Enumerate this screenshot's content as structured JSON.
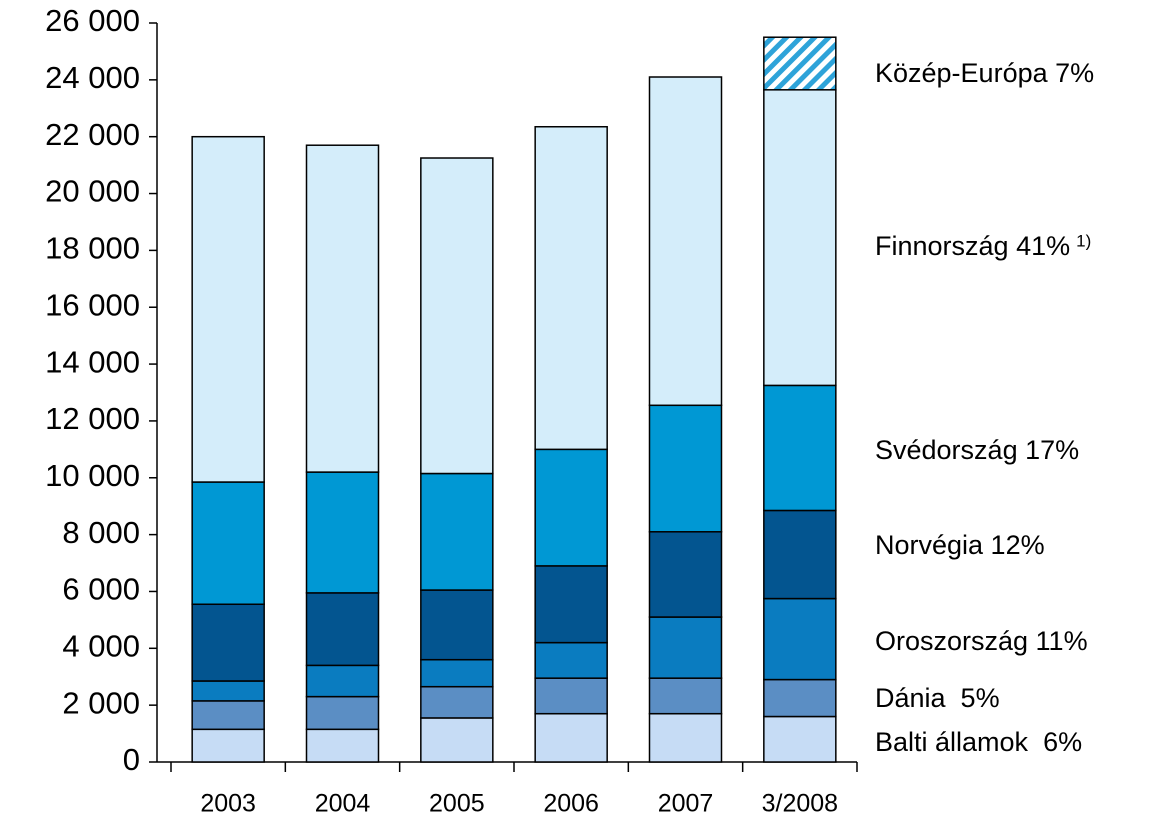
{
  "chart_data": {
    "type": "stacked_bar",
    "categories": [
      "2003",
      "2004",
      "2005",
      "2006",
      "2007",
      "3/2008"
    ],
    "series": [
      {
        "name": "Balti államok  6%",
        "color": "#c6dcf5",
        "values": [
          1150,
          1150,
          1550,
          1700,
          1700,
          1600
        ]
      },
      {
        "name": "Dánia  5%",
        "color": "#5b8ec4",
        "values": [
          1000,
          1150,
          1100,
          1250,
          1250,
          1300
        ]
      },
      {
        "name": "Oroszország 11%",
        "color": "#0a7cc0",
        "values": [
          700,
          1100,
          950,
          1250,
          2150,
          2850
        ]
      },
      {
        "name": "Norvégia 12%",
        "color": "#035590",
        "values": [
          2700,
          2550,
          2450,
          2700,
          3000,
          3100
        ]
      },
      {
        "name": "Svédország 17%",
        "color": "#0098d4",
        "values": [
          4300,
          4250,
          4100,
          4100,
          4450,
          4400
        ]
      },
      {
        "name": "Finnország 41%",
        "color": "#d4edfa",
        "values": [
          12150,
          11500,
          11100,
          11350,
          11550,
          10400
        ]
      },
      {
        "name": "Közép-Európa 7%",
        "color": "#2ea3d9",
        "hatched": true,
        "values": [
          null,
          null,
          null,
          null,
          null,
          1850
        ]
      }
    ],
    "footnote_marker": "1)",
    "ylim": [
      0,
      26000
    ],
    "yticks": [
      0,
      {
        "value": 2000,
        "label": "2 000"
      },
      {
        "value": 4000,
        "label": "4 000"
      },
      {
        "value": 6000,
        "label": "6 000"
      },
      {
        "value": 8000,
        "label": "8 000"
      },
      {
        "value": 10000,
        "label": "10 000"
      },
      {
        "value": 12000,
        "label": "12 000"
      },
      {
        "value": 14000,
        "label": "14 000"
      },
      {
        "value": 16000,
        "label": "16 000"
      },
      {
        "value": 18000,
        "label": "18 000"
      },
      {
        "value": 20000,
        "label": "20 000"
      },
      {
        "value": 22000,
        "label": "22 000"
      },
      {
        "value": 24000,
        "label": "24 000"
      },
      {
        "value": 26000,
        "label": "26 000"
      }
    ]
  }
}
